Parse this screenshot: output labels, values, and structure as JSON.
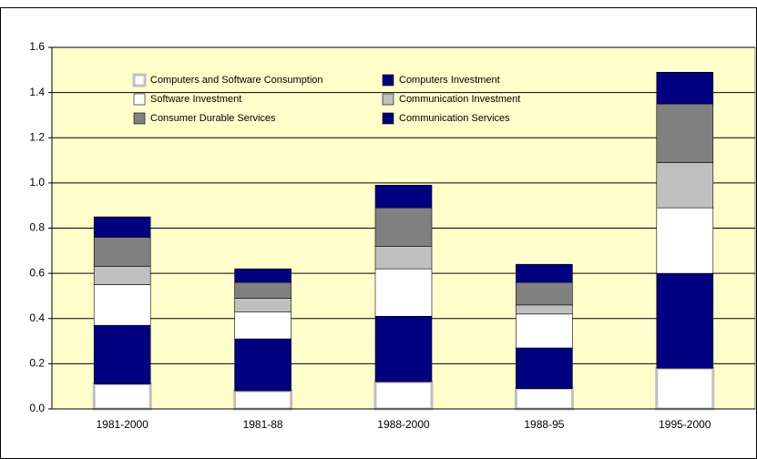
{
  "chart_data": {
    "type": "stacked_bar",
    "categories": [
      "1981-2000",
      "1981-88",
      "1988-2000",
      "1988-95",
      "1995-2000"
    ],
    "series": [
      {
        "name": "Computers and Software Consumption",
        "color": "#ffffff",
        "values": [
          0.11,
          0.08,
          0.12,
          0.09,
          0.18
        ]
      },
      {
        "name": "Computers Investment",
        "color": "#000080",
        "values": [
          0.26,
          0.23,
          0.29,
          0.18,
          0.42
        ]
      },
      {
        "name": "Software Investment",
        "color": "#ffffff",
        "values": [
          0.18,
          0.12,
          0.21,
          0.15,
          0.29
        ]
      },
      {
        "name": "Communication Investment",
        "color": "#c0c0c0",
        "values": [
          0.08,
          0.06,
          0.1,
          0.04,
          0.2
        ]
      },
      {
        "name": "Consumer Durable Services",
        "color": "#808080",
        "values": [
          0.13,
          0.07,
          0.17,
          0.1,
          0.26
        ]
      },
      {
        "name": "Communication Services",
        "color": "#000080",
        "values": [
          0.09,
          0.06,
          0.1,
          0.08,
          0.14
        ]
      }
    ],
    "ylim": [
      0,
      1.6
    ],
    "yticks": [
      {
        "value": 0,
        "label": "0.0"
      },
      {
        "value": 0.2,
        "label": "0.2"
      },
      {
        "value": 0.4,
        "label": "0.4"
      },
      {
        "value": 0.6,
        "label": "0.6"
      },
      {
        "value": 0.8,
        "label": "0.8"
      },
      {
        "value": 1,
        "label": "1.0"
      },
      {
        "value": 1.2,
        "label": "1.2"
      },
      {
        "value": 1.4,
        "label": "1.4"
      },
      {
        "value": 1.6,
        "label": "1.6"
      }
    ],
    "grid": true,
    "background": "#ffffcc"
  }
}
